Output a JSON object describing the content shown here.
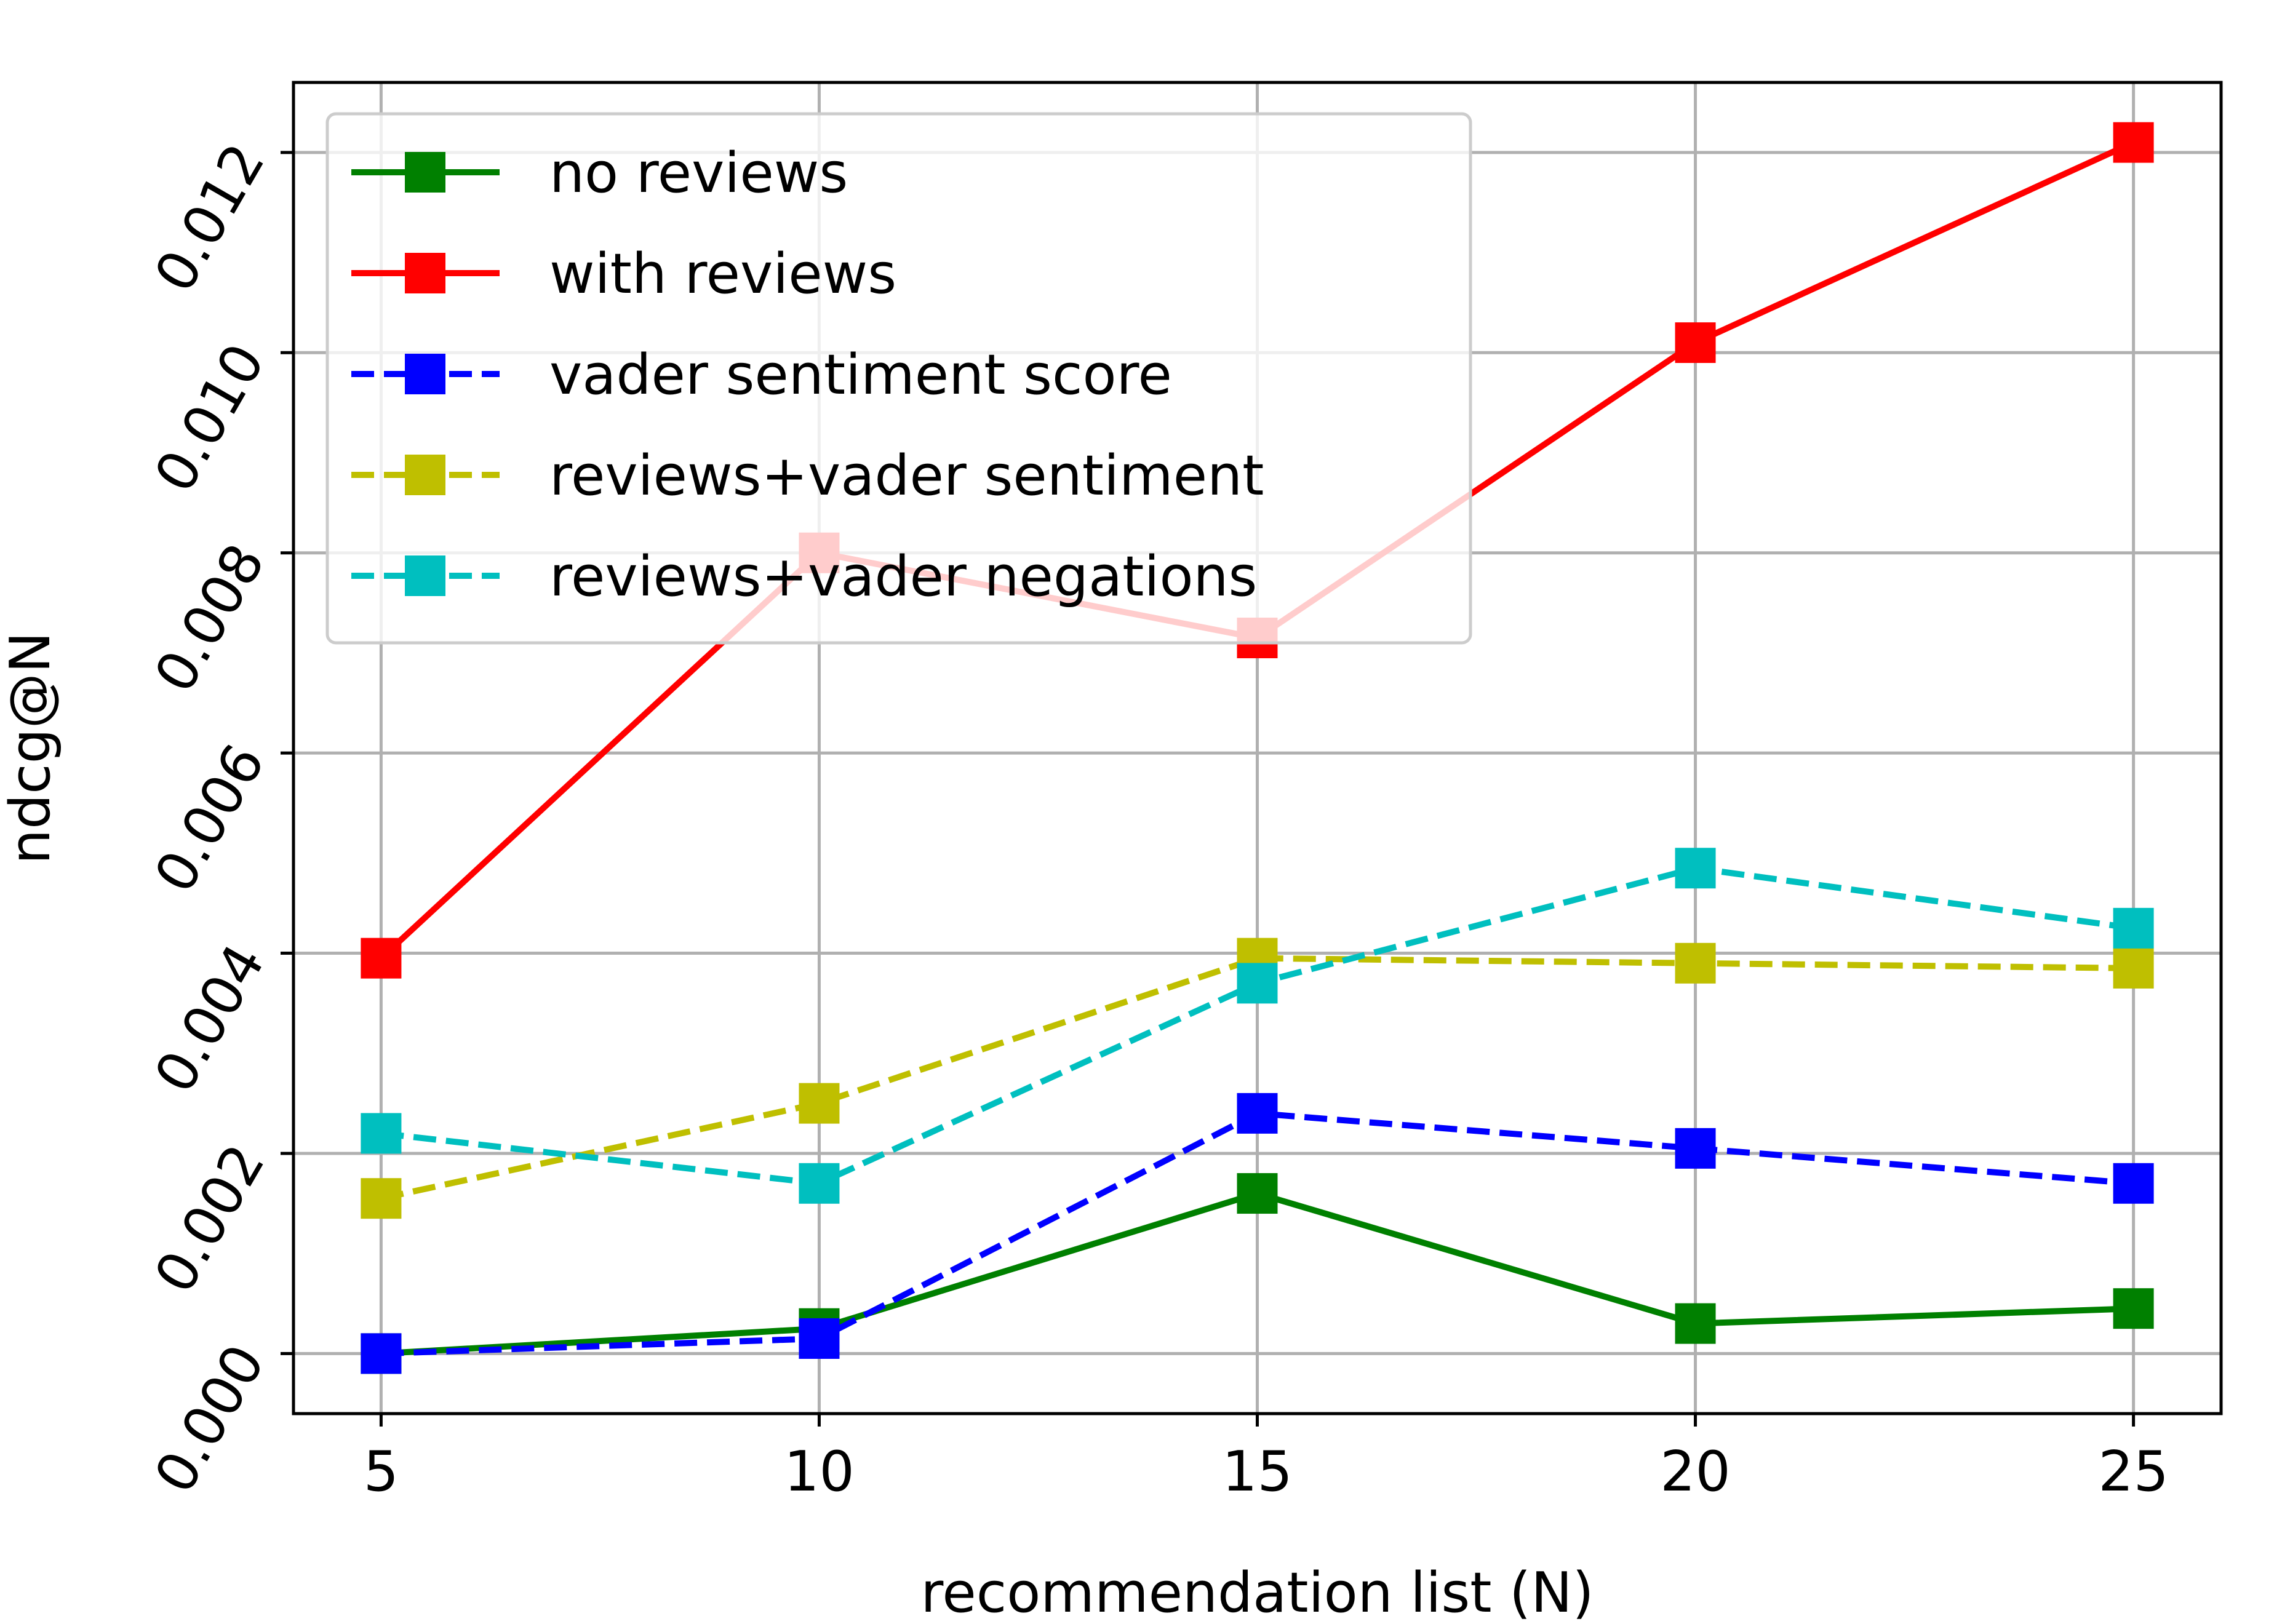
{
  "chart_data": {
    "type": "line",
    "title": "",
    "xlabel": "recommendation list (N)",
    "ylabel": "ndcg@N",
    "x": [
      5,
      10,
      15,
      20,
      25
    ],
    "xticks": [
      "5",
      "10",
      "15",
      "20",
      "25"
    ],
    "yticks": [
      "0.000",
      "0.002",
      "0.004",
      "0.006",
      "0.008",
      "0.010",
      "0.012"
    ],
    "xlim": [
      4.0,
      26.0
    ],
    "ylim": [
      -0.0006,
      0.0127
    ],
    "grid": true,
    "legend_position": "upper-left",
    "series": [
      {
        "name": "no reviews",
        "color": "#008000",
        "dash": "solid",
        "marker": "square",
        "values": [
          0.0,
          0.00025,
          0.0016,
          0.0003,
          0.00045
        ]
      },
      {
        "name": "with reviews",
        "color": "#ff0000",
        "dash": "solid",
        "marker": "square",
        "values": [
          0.00395,
          0.008,
          0.00715,
          0.0101,
          0.0121
        ]
      },
      {
        "name": "vader sentiment score",
        "color": "#0000ff",
        "dash": "dashed",
        "marker": "square",
        "values": [
          0.0,
          0.00015,
          0.0024,
          0.00205,
          0.0017
        ]
      },
      {
        "name": "reviews+vader sentiment",
        "color": "#bfbf00",
        "dash": "dashed",
        "marker": "square",
        "values": [
          0.00155,
          0.0025,
          0.00395,
          0.0039,
          0.00385
        ]
      },
      {
        "name": "reviews+vader negations",
        "color": "#00bfbf",
        "dash": "dashed",
        "marker": "square",
        "values": [
          0.0022,
          0.0017,
          0.0037,
          0.00485,
          0.00425
        ]
      }
    ]
  }
}
